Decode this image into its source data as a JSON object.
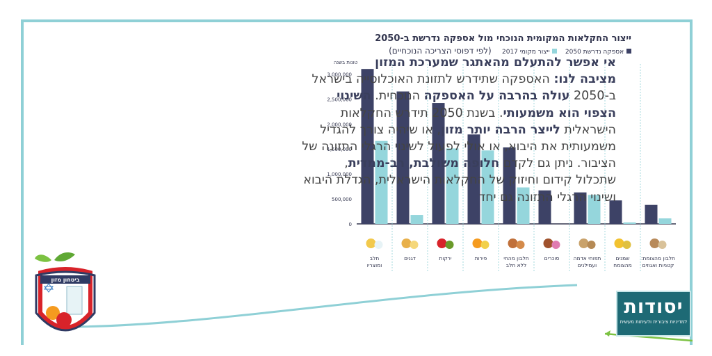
{
  "paragraph": {
    "heading_line1": "אי אפשר להתעלם מהאתגר שמערכת המזון",
    "heading_line2a": "מציבה לנו:",
    "p1": " האספקה שתידרש לתזונת האוכלוסייה בישראל ב-2050 ",
    "b1": "עולה בהרבה על האספקה",
    "p2": " הנוכחית. ",
    "b2": "השינוי הצפוי הוא משמעותי",
    "p3": ". בשנת 2050 תידרש החקלאות הישראלית ",
    "b3": "לייצר הרבה יותר מזון",
    "p4": ", או שיהיה צורך להגדיל משמעותית את היבוא, או אולי לפעול לשינוי הרגלי התזונה של הציבור. ניתן גם לקדם ",
    "b4": "חלופה משולבת, רב-ממדית",
    "p5": ", שתכלול קידום וחיזוק של החקלאות הישראלית, הגדלת היבוא ושינוי הרגלי התזונה גם יחד"
  },
  "logo": {
    "title": "יסודות",
    "subtitle": "למדיניות ציבורית ולעיתות מעשית"
  },
  "badge": {
    "label": "ביטחון מזון"
  },
  "colors": {
    "series_2050": "#3d4266",
    "series_2017": "#95d6dc",
    "frame": "#8fd0d6",
    "logo_bg": "#1e6a75"
  },
  "chart_data": {
    "type": "bar",
    "title": "ייצור החקלאות המקומית הנוכחי מול אספקה נדרשת ב-2050",
    "subtitle": "(לפי דפוסי הצריכה הנוכחיים)",
    "ylabel": "טונות בשנה",
    "ylim": [
      0,
      3200000
    ],
    "yticks": [
      "3,000,000",
      "2,500,000",
      "2,000,000",
      "1,500,000",
      "1,000,000",
      "500,000",
      "0"
    ],
    "ytick_values": [
      3000000,
      2500000,
      2000000,
      1500000,
      1000000,
      500000,
      0
    ],
    "categories": [
      "חלב ומוצריו",
      "דגנים",
      "ירקות",
      "פירות",
      "חלבון מהחי ללא חלב",
      "סוכרים",
      "תפוחי אדמה ועמילנים",
      "שמנים מהצומח",
      "חלבון מהצומח: קטניות ואגוזים"
    ],
    "series": [
      {
        "name": "אספקה נדרשת 2050",
        "values": [
          3100000,
          2650000,
          2420000,
          1790000,
          1530000,
          670000,
          630000,
          470000,
          380000
        ]
      },
      {
        "name": "ייצור מקומי 2017",
        "values": [
          1660000,
          180000,
          1510000,
          1470000,
          730000,
          0,
          580000,
          30000,
          110000
        ]
      }
    ],
    "icons": [
      "milk-cheese-icon",
      "bread-wheat-icon",
      "tomato-avocado-icon",
      "banana-orange-icon",
      "chicken-icon",
      "sweets-icon",
      "potato-icon",
      "oil-bottle-icon",
      "nuts-legumes-icon"
    ]
  }
}
